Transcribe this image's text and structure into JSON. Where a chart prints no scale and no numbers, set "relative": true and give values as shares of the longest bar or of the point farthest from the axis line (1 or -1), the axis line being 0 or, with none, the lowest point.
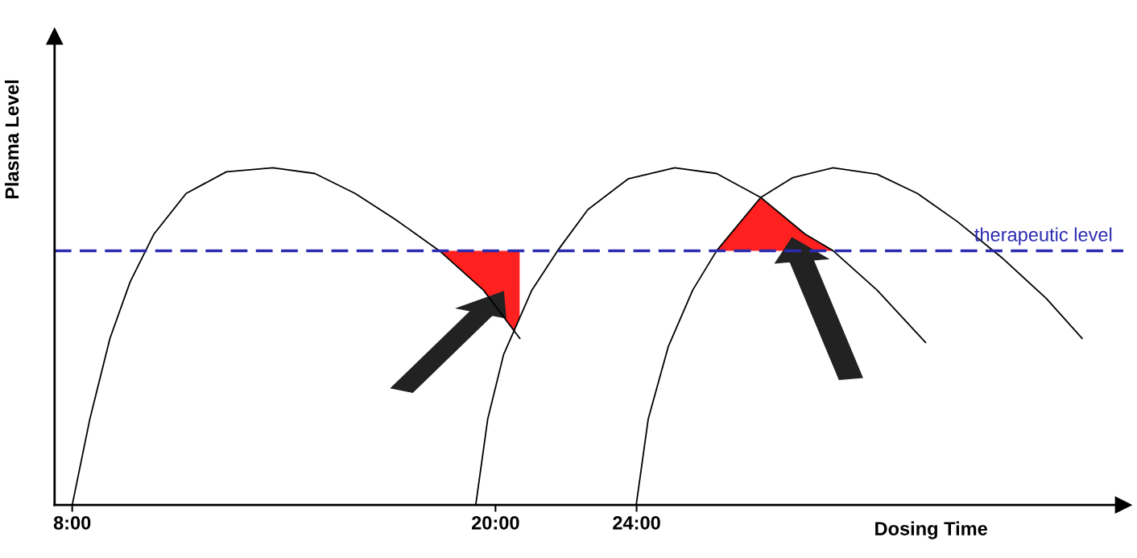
{
  "chart_data": {
    "type": "line",
    "relative": true,
    "xlabel": "Dosing Time",
    "ylabel": "Plasma Level",
    "xlim": [
      7.5,
      37.8
    ],
    "xticks": [
      {
        "value": 8,
        "label": "8:00"
      },
      {
        "value": 20,
        "label": "20:00"
      },
      {
        "value": 24,
        "label": "24:00"
      }
    ],
    "tick_labels": "x",
    "grid": false,
    "marker": "none",
    "line_style": "solid",
    "series": [
      {
        "color": "#000000",
        "x": [
          8.0,
          8.5,
          9.07,
          9.64,
          10.32,
          11.23,
          12.37,
          13.69,
          14.88,
          16.02,
          17.16,
          18.41,
          19.66,
          20.69
        ],
        "values": [
          0,
          0.255,
          0.494,
          0.661,
          0.804,
          0.924,
          0.988,
          1.0,
          0.983,
          0.924,
          0.847,
          0.754,
          0.637,
          0.494
        ]
      },
      {
        "color": "#000000",
        "x": [
          19.44,
          19.78,
          20.23,
          21.03,
          21.76,
          22.62,
          23.76,
          25.08,
          26.27,
          27.52,
          28.77,
          29.57,
          30.82,
          32.19
        ],
        "values": [
          0,
          0.255,
          0.446,
          0.637,
          0.754,
          0.876,
          0.967,
          1.0,
          0.983,
          0.912,
          0.804,
          0.754,
          0.637,
          0.482
        ]
      },
      {
        "color": "#000000",
        "x": [
          23.99,
          24.33,
          24.9,
          25.59,
          26.27,
          27.52,
          28.43,
          29.57,
          30.82,
          31.96,
          33.1,
          34.36,
          35.61,
          36.63
        ],
        "values": [
          0,
          0.255,
          0.47,
          0.637,
          0.754,
          0.912,
          0.971,
          1.0,
          0.981,
          0.924,
          0.84,
          0.733,
          0.613,
          0.494
        ]
      }
    ],
    "ref_lines": [
      {
        "axis": "y",
        "value": 0.754,
        "label": "therapeutic level",
        "color": "#2b2bb0",
        "line_style": "dashed"
      }
    ]
  }
}
